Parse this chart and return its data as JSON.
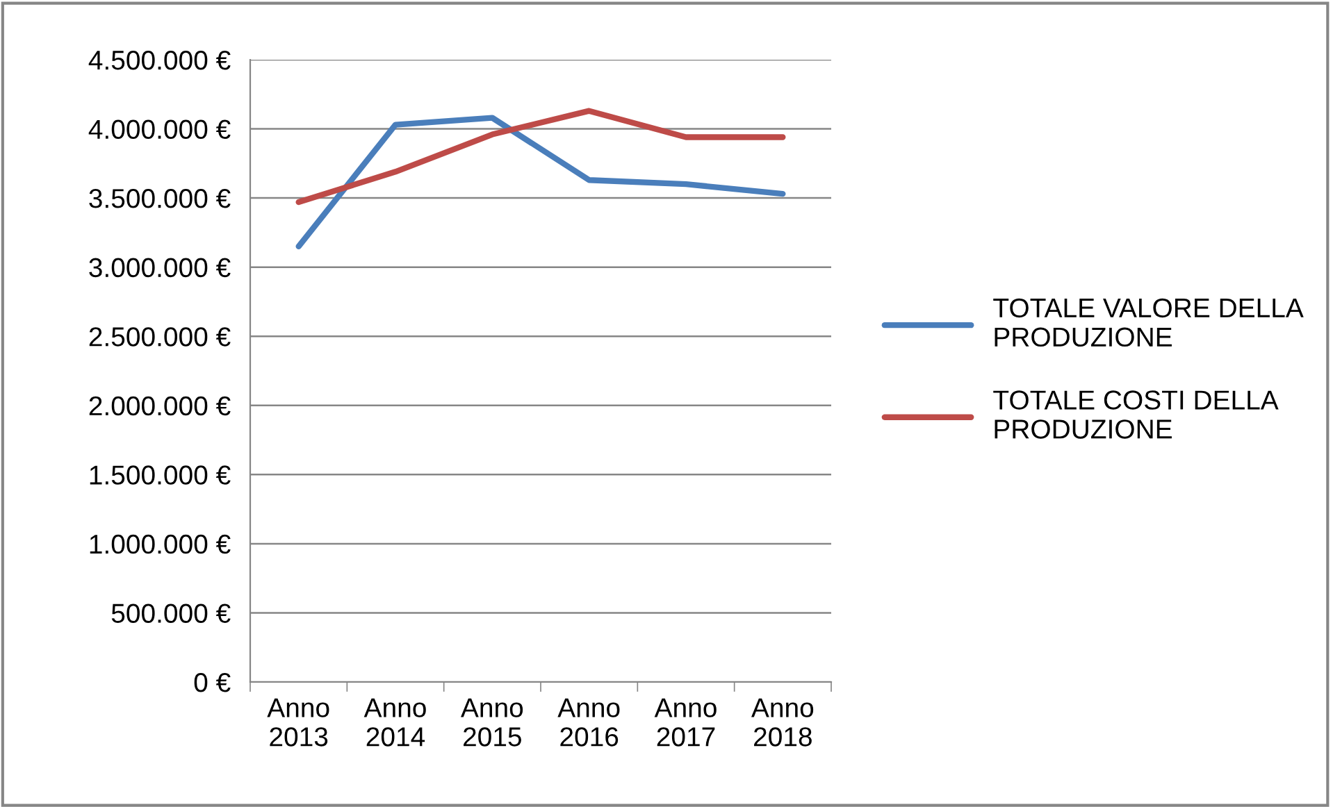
{
  "chart_data": {
    "type": "line",
    "categories": [
      "Anno\n2013",
      "Anno\n2014",
      "Anno\n2015",
      "Anno\n2016",
      "Anno\n2017",
      "Anno\n2018"
    ],
    "series": [
      {
        "name": "TOTALE VALORE DELLA\nPRODUZIONE",
        "color": "#4a7ebb",
        "values": [
          3150000,
          4030000,
          4080000,
          3630000,
          3600000,
          3530000
        ]
      },
      {
        "name": "TOTALE COSTI DELLA\nPRODUZIONE",
        "color": "#be4b48",
        "values": [
          3470000,
          3690000,
          3960000,
          4130000,
          3940000,
          3940000
        ]
      }
    ],
    "ylim": [
      0,
      4500000
    ],
    "yticks": [
      {
        "value": 0,
        "label": "0 €"
      },
      {
        "value": 500000,
        "label": "500.000 €"
      },
      {
        "value": 1000000,
        "label": "1.000.000 €"
      },
      {
        "value": 1500000,
        "label": "1.500.000 €"
      },
      {
        "value": 2000000,
        "label": "2.000.000 €"
      },
      {
        "value": 2500000,
        "label": "2.500.000 €"
      },
      {
        "value": 3000000,
        "label": "3.000.000 €"
      },
      {
        "value": 3500000,
        "label": "3.500.000 €"
      },
      {
        "value": 4000000,
        "label": "4.000.000 €"
      },
      {
        "value": 4500000,
        "label": "4.500.000 €"
      }
    ],
    "grid": "y",
    "legend": "right",
    "marker": "none",
    "line_style": "solid"
  }
}
